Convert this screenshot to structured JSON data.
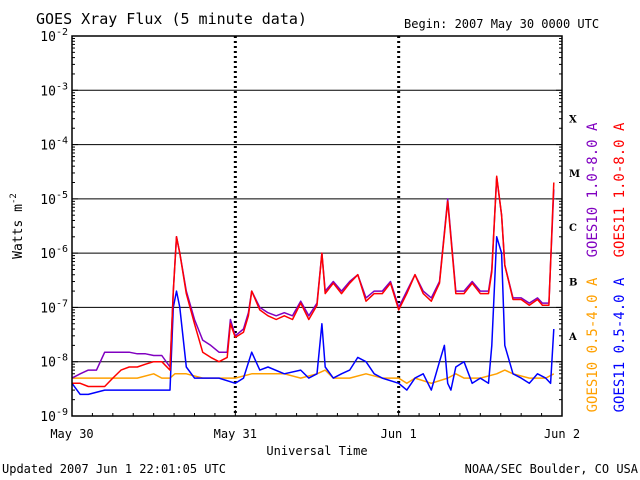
{
  "chart_data": {
    "type": "line",
    "title": "GOES Xray Flux (5 minute data)",
    "begin_label": "Begin:  2007 May 30 0000 UTC",
    "xlabel": "Universal Time",
    "ylabel": "Watts m",
    "ylabel_exp": "-2",
    "yscale": "log",
    "ylim": [
      1e-09,
      0.01
    ],
    "xlim": [
      0,
      3
    ],
    "x_unit": "days since 2007 May 30 0000 UTC",
    "x_ticks": [
      {
        "value": 0,
        "label": "May 30"
      },
      {
        "value": 1,
        "label": "May 31"
      },
      {
        "value": 2,
        "label": "Jun 1"
      },
      {
        "value": 3,
        "label": "Jun 2"
      }
    ],
    "y_ticks": [
      {
        "value": 0.01,
        "base": "10",
        "exp": "-2"
      },
      {
        "value": 0.001,
        "base": "10",
        "exp": "-3"
      },
      {
        "value": 0.0001,
        "base": "10",
        "exp": "-4"
      },
      {
        "value": 1e-05,
        "base": "10",
        "exp": "-5"
      },
      {
        "value": 1e-06,
        "base": "10",
        "exp": "-6"
      },
      {
        "value": 1e-07,
        "base": "10",
        "exp": "-7"
      },
      {
        "value": 1e-08,
        "base": "10",
        "exp": "-8"
      },
      {
        "value": 1e-09,
        "base": "10",
        "exp": "-9"
      }
    ],
    "flare_classes": [
      {
        "label": "X",
        "value": 0.0003
      },
      {
        "label": "M",
        "value": 3e-05
      },
      {
        "label": "C",
        "value": 3e-06
      },
      {
        "label": "B",
        "value": 3e-07
      },
      {
        "label": "A",
        "value": 3e-08
      }
    ],
    "grid": "horizontal at each decade, dashed verticals at day boundaries",
    "series": [
      {
        "name": "GOES10 1.0-8.0 A",
        "color": "#8000c0",
        "x": [
          0,
          0.05,
          0.1,
          0.15,
          0.2,
          0.25,
          0.3,
          0.35,
          0.4,
          0.45,
          0.5,
          0.55,
          0.6,
          0.62,
          0.64,
          0.66,
          0.7,
          0.75,
          0.8,
          0.85,
          0.9,
          0.95,
          0.97,
          1.0,
          1.05,
          1.08,
          1.1,
          1.15,
          1.2,
          1.25,
          1.3,
          1.35,
          1.4,
          1.45,
          1.5,
          1.53,
          1.55,
          1.6,
          1.65,
          1.7,
          1.75,
          1.8,
          1.85,
          1.9,
          1.95,
          2.0,
          2.05,
          2.1,
          2.15,
          2.2,
          2.25,
          2.3,
          2.35,
          2.4,
          2.45,
          2.5,
          2.55,
          2.57,
          2.6,
          2.63,
          2.65,
          2.7,
          2.75,
          2.8,
          2.85,
          2.88,
          2.9,
          2.92,
          2.95
        ],
        "y": [
          5e-09,
          6e-09,
          7e-09,
          7e-09,
          1.5e-08,
          1.5e-08,
          1.5e-08,
          1.5e-08,
          1.4e-08,
          1.4e-08,
          1.3e-08,
          1.3e-08,
          8e-09,
          2e-07,
          2e-06,
          1e-06,
          2e-07,
          6e-08,
          2.5e-08,
          2e-08,
          1.5e-08,
          1.5e-08,
          6e-08,
          3e-08,
          4e-08,
          8e-08,
          2e-07,
          1e-07,
          8e-08,
          7e-08,
          8e-08,
          7e-08,
          1.3e-07,
          7e-08,
          1.2e-07,
          1e-06,
          2e-07,
          3e-07,
          2e-07,
          3e-07,
          4e-07,
          1.5e-07,
          2e-07,
          2e-07,
          3e-07,
          1e-07,
          2e-07,
          4e-07,
          2e-07,
          1.5e-07,
          3e-07,
          1e-05,
          2e-07,
          2e-07,
          3e-07,
          2e-07,
          2e-07,
          5e-07,
          2.5e-05,
          5e-06,
          6e-07,
          1.5e-07,
          1.5e-07,
          1.2e-07,
          1.5e-07,
          1.2e-07,
          1.2e-07,
          1.2e-07,
          1.5e-05
        ]
      },
      {
        "name": "GOES11 1.0-8.0 A",
        "color": "#ff0000",
        "x": [
          0,
          0.05,
          0.1,
          0.15,
          0.2,
          0.25,
          0.3,
          0.35,
          0.4,
          0.45,
          0.5,
          0.55,
          0.6,
          0.62,
          0.64,
          0.66,
          0.7,
          0.75,
          0.8,
          0.85,
          0.9,
          0.95,
          0.97,
          1.0,
          1.05,
          1.08,
          1.1,
          1.15,
          1.2,
          1.25,
          1.3,
          1.35,
          1.4,
          1.45,
          1.5,
          1.53,
          1.55,
          1.6,
          1.65,
          1.7,
          1.75,
          1.8,
          1.85,
          1.9,
          1.95,
          2.0,
          2.05,
          2.1,
          2.15,
          2.2,
          2.25,
          2.3,
          2.35,
          2.4,
          2.45,
          2.5,
          2.55,
          2.57,
          2.6,
          2.63,
          2.65,
          2.7,
          2.75,
          2.8,
          2.85,
          2.88,
          2.9,
          2.92,
          2.95
        ],
        "y": [
          4e-09,
          4e-09,
          3.5e-09,
          3.5e-09,
          3.5e-09,
          5e-09,
          7e-09,
          8e-09,
          8e-09,
          9e-09,
          1e-08,
          1e-08,
          7e-09,
          2e-07,
          2e-06,
          1e-06,
          1.8e-07,
          5e-08,
          1.5e-08,
          1.2e-08,
          1e-08,
          1.2e-08,
          5e-08,
          2.8e-08,
          3.5e-08,
          7e-08,
          2e-07,
          9e-08,
          7e-08,
          6e-08,
          7e-08,
          6e-08,
          1.2e-07,
          6e-08,
          1.1e-07,
          1e-06,
          1.8e-07,
          2.8e-07,
          1.8e-07,
          2.8e-07,
          4e-07,
          1.3e-07,
          1.8e-07,
          1.8e-07,
          2.8e-07,
          9e-08,
          1.8e-07,
          4e-07,
          1.8e-07,
          1.3e-07,
          2.8e-07,
          9e-06,
          1.8e-07,
          1.8e-07,
          2.8e-07,
          1.8e-07,
          1.8e-07,
          4.5e-07,
          2.6e-05,
          5e-06,
          6e-07,
          1.4e-07,
          1.4e-07,
          1.1e-07,
          1.4e-07,
          1.1e-07,
          1.1e-07,
          1.1e-07,
          2e-05
        ]
      },
      {
        "name": "GOES10 0.5-4.0 A",
        "color": "#ffa000",
        "x": [
          0,
          0.1,
          0.2,
          0.3,
          0.4,
          0.5,
          0.55,
          0.6,
          0.63,
          0.66,
          0.7,
          0.8,
          0.9,
          1.0,
          1.1,
          1.2,
          1.3,
          1.4,
          1.5,
          1.55,
          1.6,
          1.7,
          1.8,
          1.9,
          2.0,
          2.05,
          2.1,
          2.2,
          2.3,
          2.35,
          2.4,
          2.5,
          2.6,
          2.65,
          2.7,
          2.8,
          2.9,
          2.95
        ],
        "y": [
          5e-09,
          5e-09,
          5e-09,
          5e-09,
          5e-09,
          6e-09,
          5e-09,
          5e-09,
          6e-09,
          6e-09,
          6e-09,
          5e-09,
          5e-09,
          5e-09,
          6e-09,
          6e-09,
          6e-09,
          5e-09,
          6e-09,
          7e-09,
          5e-09,
          5e-09,
          6e-09,
          5e-09,
          5e-09,
          4e-09,
          5e-09,
          4e-09,
          5e-09,
          6e-09,
          5e-09,
          5e-09,
          6e-09,
          7e-09,
          6e-09,
          5e-09,
          5e-09,
          6e-09
        ]
      },
      {
        "name": "GOES11 0.5-4.0 A",
        "color": "#0000ff",
        "x": [
          0,
          0.05,
          0.1,
          0.2,
          0.3,
          0.4,
          0.5,
          0.55,
          0.6,
          0.62,
          0.64,
          0.66,
          0.7,
          0.75,
          0.8,
          0.9,
          1.0,
          1.05,
          1.1,
          1.15,
          1.2,
          1.3,
          1.4,
          1.45,
          1.5,
          1.53,
          1.55,
          1.6,
          1.65,
          1.7,
          1.75,
          1.8,
          1.85,
          1.9,
          2.0,
          2.05,
          2.1,
          2.15,
          2.2,
          2.25,
          2.28,
          2.3,
          2.32,
          2.35,
          2.4,
          2.45,
          2.5,
          2.55,
          2.57,
          2.6,
          2.63,
          2.65,
          2.7,
          2.75,
          2.8,
          2.85,
          2.9,
          2.93,
          2.95
        ],
        "y": [
          4e-09,
          2.5e-09,
          2.5e-09,
          3e-09,
          3e-09,
          3e-09,
          3e-09,
          3e-09,
          3e-09,
          1e-07,
          2e-07,
          1e-07,
          8e-09,
          5e-09,
          5e-09,
          5e-09,
          4e-09,
          5e-09,
          1.5e-08,
          7e-09,
          8e-09,
          6e-09,
          7e-09,
          5e-09,
          6e-09,
          5e-08,
          8e-09,
          5e-09,
          6e-09,
          7e-09,
          1.2e-08,
          1e-08,
          6e-09,
          5e-09,
          4e-09,
          3e-09,
          5e-09,
          6e-09,
          3e-09,
          1e-08,
          2e-08,
          4e-09,
          3e-09,
          8e-09,
          1e-08,
          4e-09,
          5e-09,
          4e-09,
          2e-08,
          2e-06,
          1e-06,
          2e-08,
          6e-09,
          5e-09,
          4e-09,
          6e-09,
          5e-09,
          4e-09,
          4e-08
        ]
      }
    ],
    "legend": [
      {
        "label": "GOES10 1.0-8.0 A",
        "color": "#8000c0"
      },
      {
        "label": "GOES11 1.0-8.0 A",
        "color": "#ff0000"
      },
      {
        "label": "GOES10 0.5-4.0 A",
        "color": "#ffa000"
      },
      {
        "label": "GOES11 0.5-4.0 A",
        "color": "#0000ff"
      }
    ]
  },
  "footer": {
    "updated": "Updated 2007 Jun  1 22:01:05 UTC",
    "credit": "NOAA/SEC Boulder, CO USA"
  }
}
